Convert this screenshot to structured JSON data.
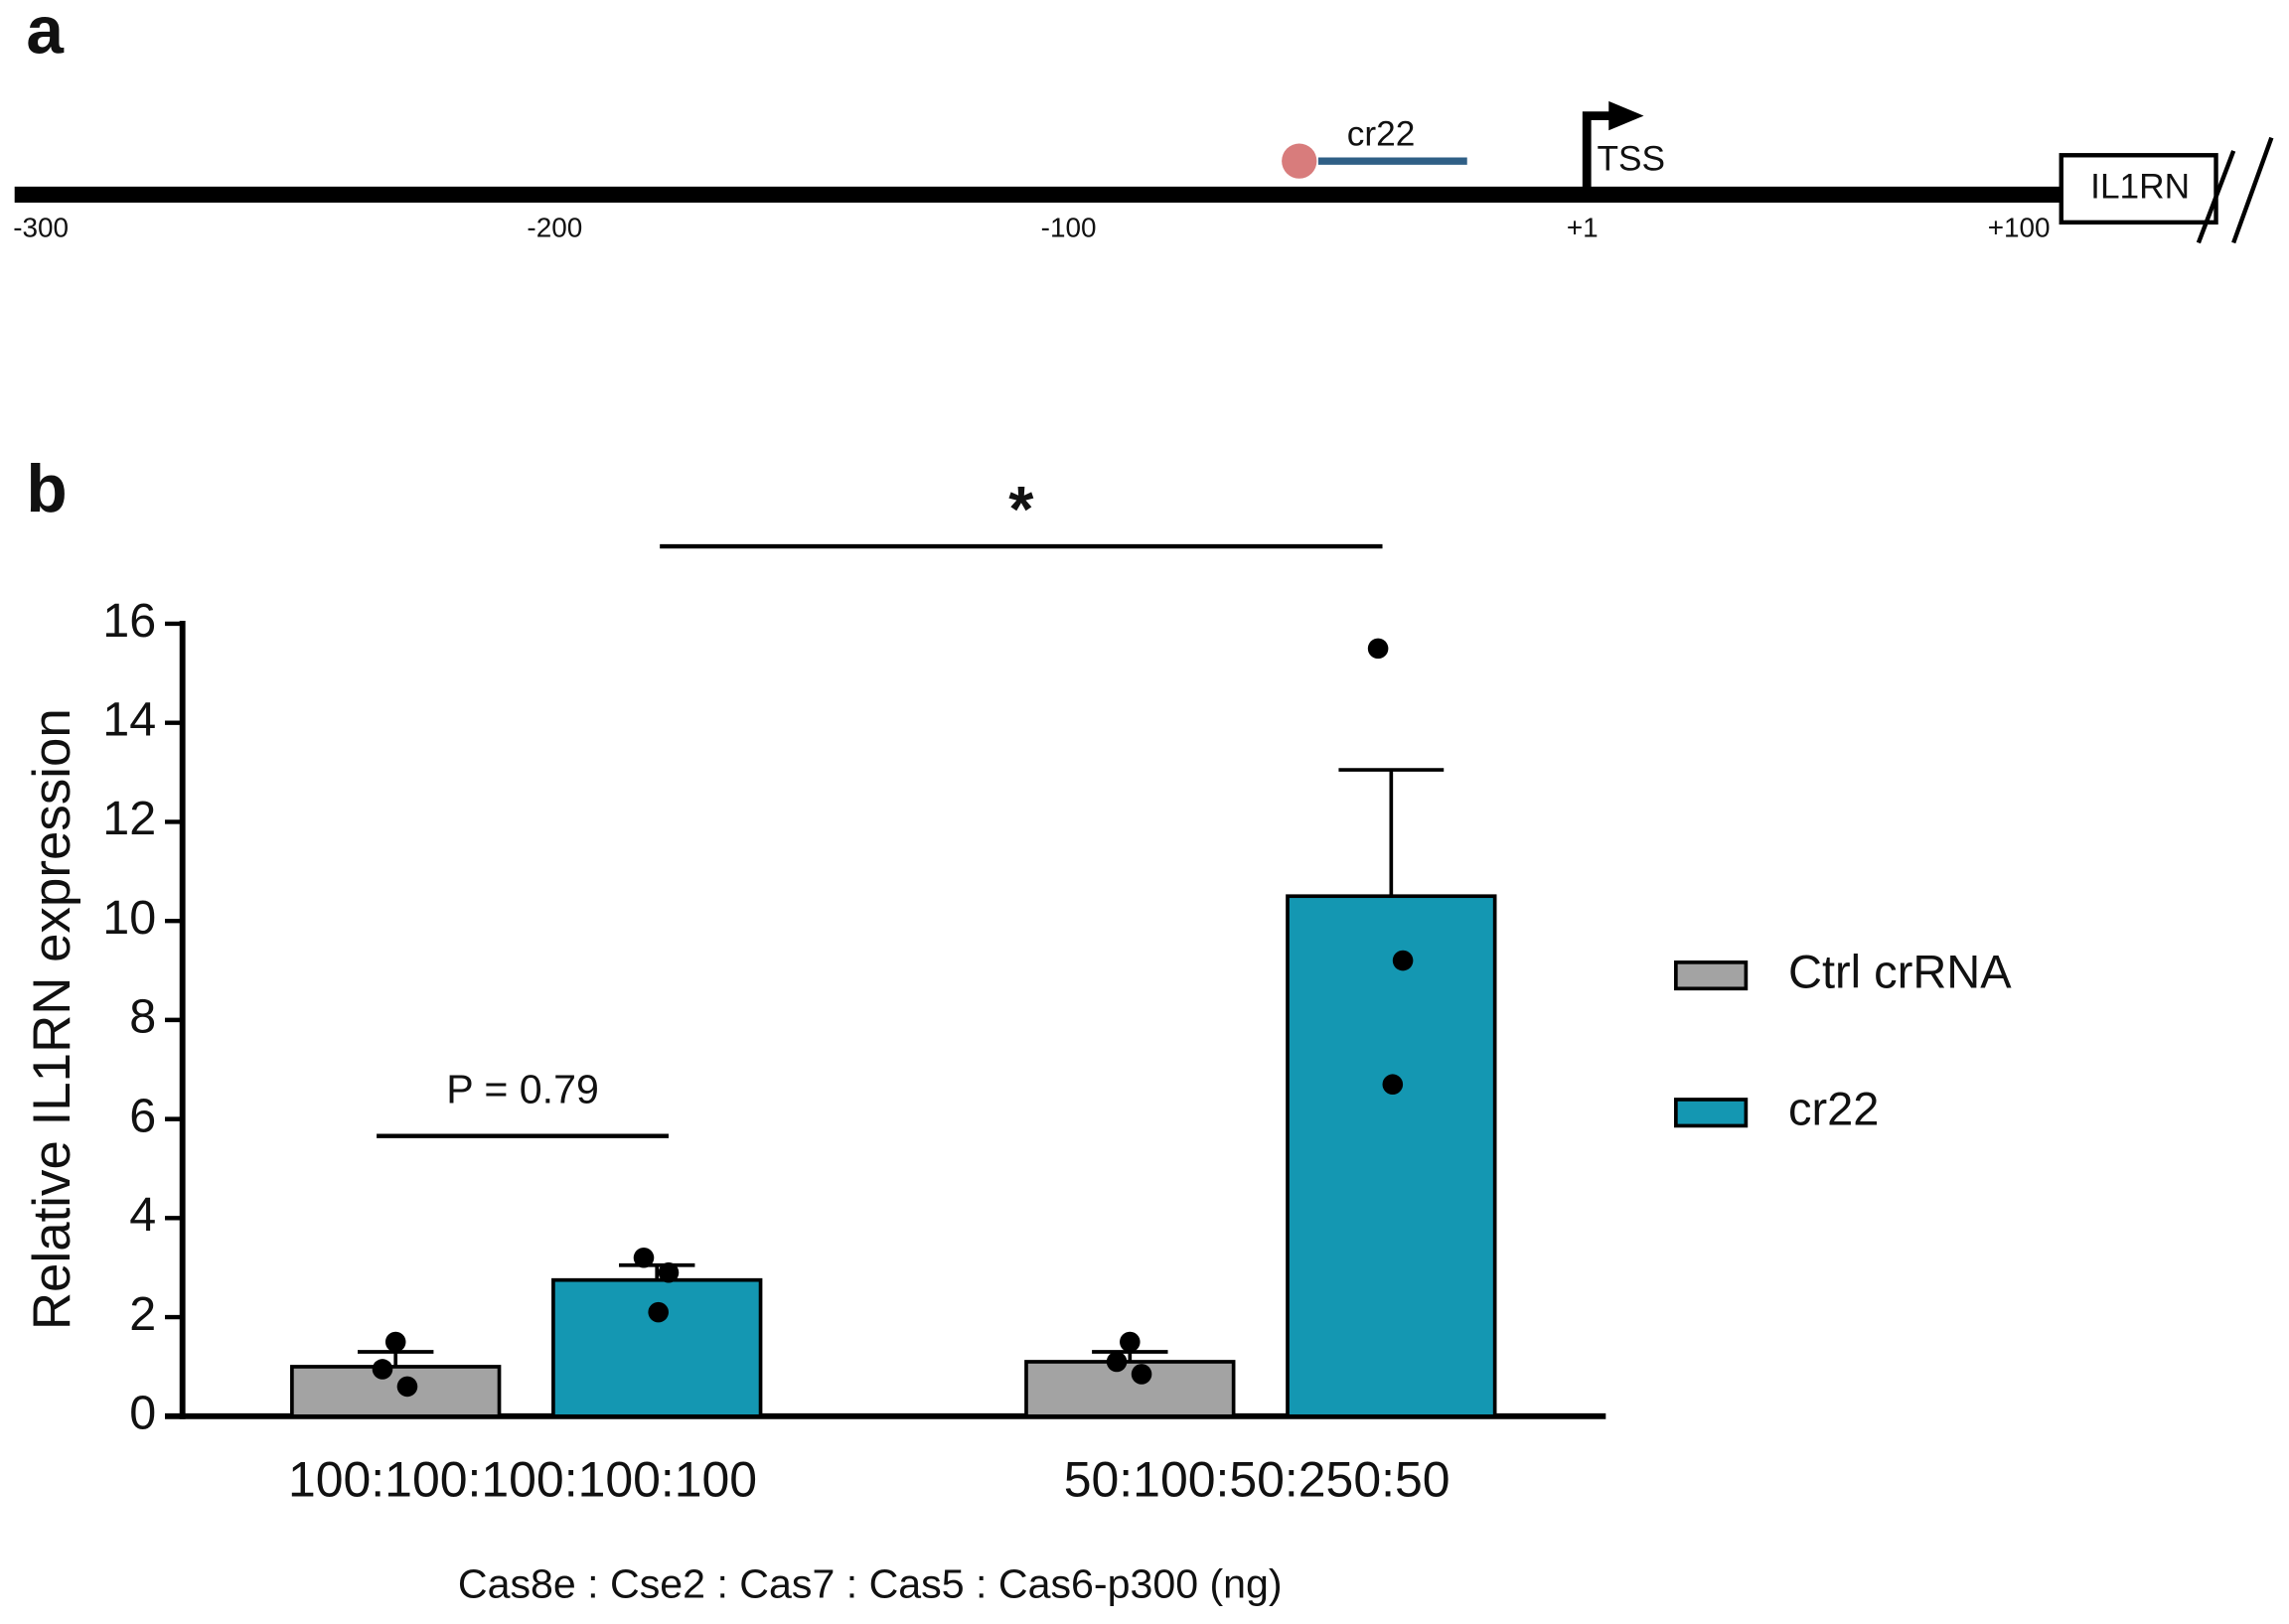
{
  "panel_a": {
    "label": "a",
    "target": "cr22",
    "tss": "TSS",
    "gene": "IL1RN",
    "ruler_labels": [
      "-300",
      "-200",
      "-100",
      "+1",
      "+100"
    ]
  },
  "chart_data": {
    "type": "bar",
    "panel_label": "b",
    "categories": [
      "100:100:100:100:100",
      "50:100:50:250:50"
    ],
    "x_label": "Cas8e : Cse2 : Cas7 : Cas5 : Cas6-p300 (ng)",
    "y_label": "Relative IL1RN expression",
    "ylim": [
      0,
      16
    ],
    "yticks": [
      0,
      2,
      4,
      6,
      8,
      10,
      12,
      14,
      16
    ],
    "legend": "right",
    "series": [
      {
        "name": "Ctrl crRNA",
        "color": "#a3a3a3",
        "values": [
          1.0,
          1.1
        ],
        "errors": [
          0.3,
          0.2
        ],
        "points": [
          [
            1.5,
            0.95,
            0.6
          ],
          [
            1.5,
            1.1,
            0.85
          ]
        ]
      },
      {
        "name": "cr22",
        "color": "#1497b2",
        "values": [
          2.75,
          10.5
        ],
        "errors": [
          0.3,
          2.55
        ],
        "points": [
          [
            3.2,
            2.9,
            2.1
          ],
          [
            15.5,
            9.2,
            6.7
          ]
        ]
      }
    ],
    "annotations": [
      "P = 0.79",
      "*"
    ]
  }
}
